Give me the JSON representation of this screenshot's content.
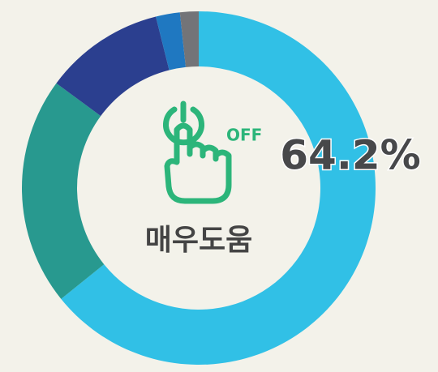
{
  "chart_data": {
    "type": "donut",
    "categories": [
      "매우도움",
      null,
      null,
      null,
      null
    ],
    "values": [
      64.2,
      20.9,
      11.0,
      2.2,
      1.7
    ],
    "value_labels": [
      "64.2%",
      null,
      null,
      null,
      null
    ],
    "colors": [
      "#31c0e6",
      "#28998f",
      "#2b3f8f",
      "#1f78c1",
      "#737478"
    ],
    "icon_text": "OFF"
  }
}
